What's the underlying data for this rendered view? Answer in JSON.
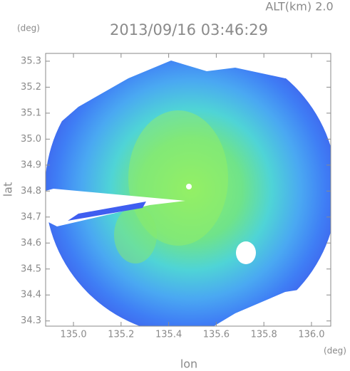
{
  "chart_data": {
    "type": "radar-map",
    "title": "2013/09/16 03:46:29",
    "annotation": "ALT(km) 2.0",
    "y_unit": "(deg)",
    "x_unit": "(deg)",
    "x_label": "lon",
    "y_label": "lat",
    "xlim": [
      134.883,
      136.081
    ],
    "ylim": [
      34.28,
      35.33
    ],
    "xticks": [
      {
        "value": 135.0,
        "label": "135.0"
      },
      {
        "value": 135.2,
        "label": "135.2"
      },
      {
        "value": 135.4,
        "label": "135.4"
      },
      {
        "value": 135.6,
        "label": "135.6"
      },
      {
        "value": 135.8,
        "label": "135.8"
      },
      {
        "value": 136.0,
        "label": "136.0"
      }
    ],
    "yticks": [
      {
        "value": 34.3,
        "label": "34.3"
      },
      {
        "value": 34.4,
        "label": "34.4"
      },
      {
        "value": 34.5,
        "label": "34.5"
      },
      {
        "value": 34.6,
        "label": "34.6"
      },
      {
        "value": 34.7,
        "label": "34.7"
      },
      {
        "value": 34.8,
        "label": "34.8"
      },
      {
        "value": 34.9,
        "label": "34.9"
      },
      {
        "value": 35.0,
        "label": "35.0"
      },
      {
        "value": 35.1,
        "label": "35.1"
      },
      {
        "value": 35.2,
        "label": "35.2"
      },
      {
        "value": 35.3,
        "label": "35.3"
      }
    ]
  }
}
